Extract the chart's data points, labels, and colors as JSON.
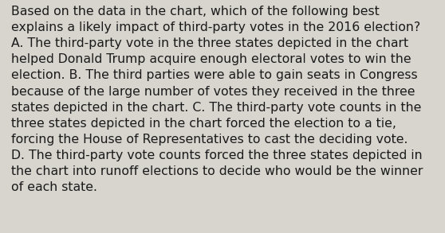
{
  "lines": [
    "Based on the data in the chart, which of the following best",
    "explains a likely impact of third-party votes in the 2016 election?",
    "A. The third-party vote in the three states depicted in the chart",
    "helped Donald Trump acquire enough electoral votes to win the",
    "election. B. The third parties were able to gain seats in Congress",
    "because of the large number of votes they received in the three",
    "states depicted in the chart. C. The third-party vote counts in the",
    "three states depicted in the chart forced the election to a tie,",
    "forcing the House of Representatives to cast the deciding vote.",
    "D. The third-party vote counts forced the three states depicted in",
    "the chart into runoff elections to decide who would be the winner",
    "of each state."
  ],
  "background_color": "#d8d5cf",
  "text_color": "#1a1a1a",
  "font_size": 11.3,
  "font_family": "DejaVu Sans",
  "figsize": [
    5.58,
    2.93
  ],
  "dpi": 100
}
